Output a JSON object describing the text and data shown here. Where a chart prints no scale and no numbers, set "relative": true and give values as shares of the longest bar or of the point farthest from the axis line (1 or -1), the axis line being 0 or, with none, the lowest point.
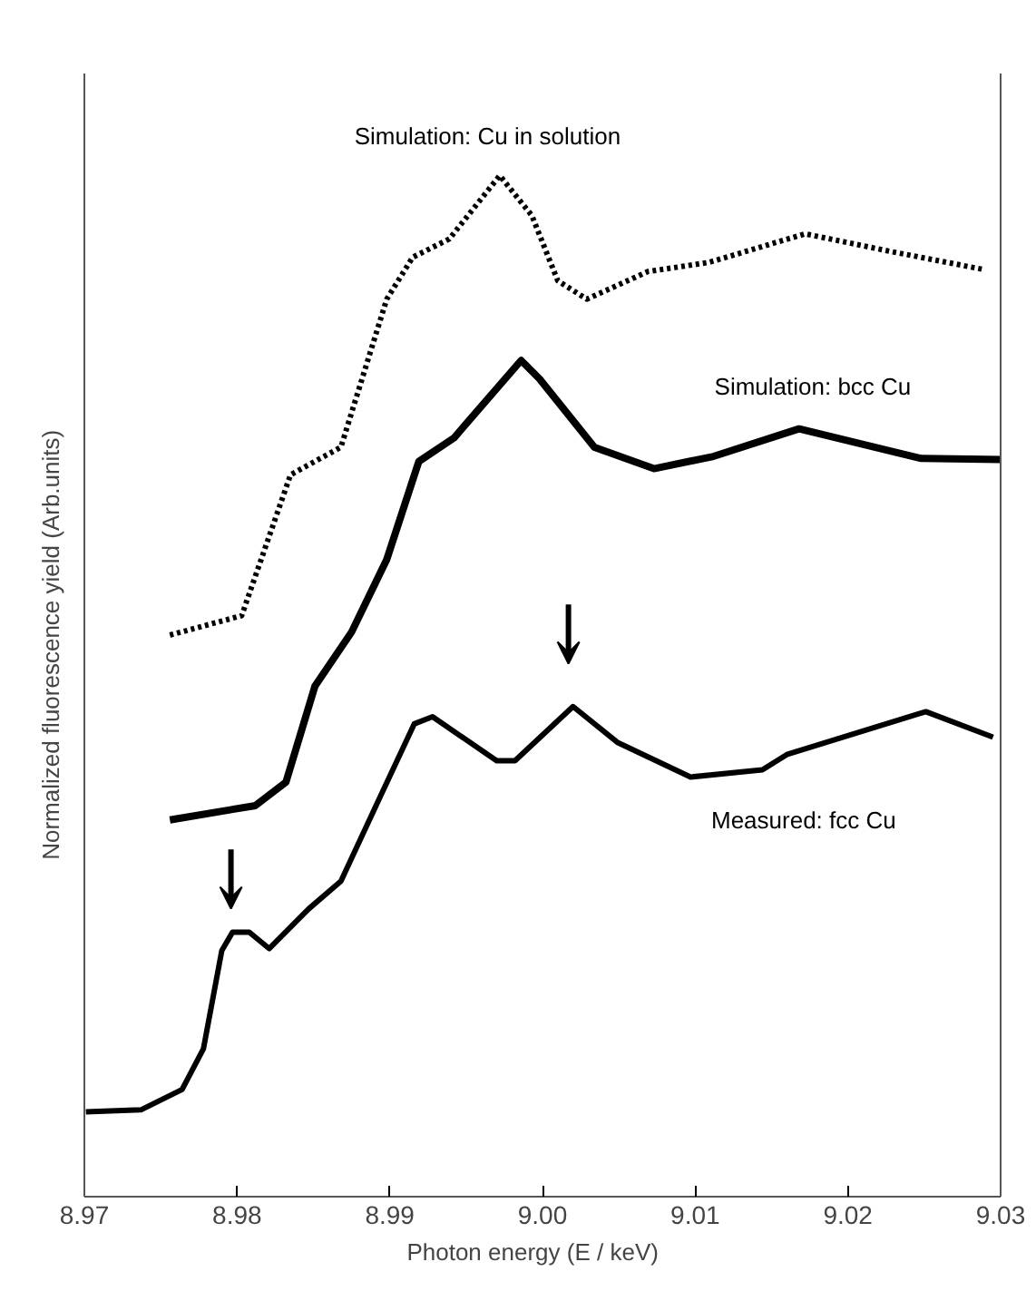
{
  "chart_data": {
    "type": "line",
    "relative": true,
    "xlabel": "Photon energy    (E / keV)",
    "ylabel": "Normalized fluorescence yield    (Arb.units)",
    "xlim": [
      8.97,
      9.03
    ],
    "xticks": [
      8.97,
      8.98,
      8.99,
      {
        "value": 9.0,
        "label": "9.00"
      },
      9.01,
      9.02,
      9.03
    ],
    "grid": false,
    "series": [
      {
        "name": "Simulation: Cu in solution",
        "color": "#000000",
        "line_style": "dotted",
        "x": [
          8.9756,
          8.9803,
          8.9835,
          8.9868,
          8.9898,
          8.9915,
          8.9939,
          8.9972,
          8.9993,
          9.001,
          9.0029,
          9.0069,
          9.0109,
          9.0172,
          9.0227,
          9.0289
        ],
        "values": [
          0.55,
          0.569,
          0.707,
          0.734,
          0.879,
          0.92,
          0.938,
          1.0,
          0.961,
          0.897,
          0.879,
          0.906,
          0.915,
          0.943,
          0.926,
          0.908
        ]
      },
      {
        "name": "Simulation: bcc Cu",
        "color": "#000000",
        "line_style": "solid",
        "x": [
          8.9756,
          8.9812,
          8.9832,
          8.9851,
          8.9875,
          8.9898,
          8.9919,
          8.9942,
          8.9986,
          8.9998,
          9.0034,
          9.0073,
          9.0112,
          9.0168,
          9.0248,
          9.03
        ],
        "values": [
          0.369,
          0.383,
          0.406,
          0.5,
          0.553,
          0.624,
          0.72,
          0.743,
          0.819,
          0.801,
          0.734,
          0.713,
          0.725,
          0.752,
          0.723,
          0.722
        ]
      },
      {
        "name": "Measured: fcc Cu",
        "color": "#000000",
        "line_style": "solid",
        "x": [
          8.9701,
          8.9737,
          8.9764,
          8.9778,
          8.979,
          8.9797,
          8.9808,
          8.9821,
          8.9847,
          8.9868,
          8.9891,
          8.9916,
          8.9928,
          8.997,
          8.9982,
          9.002,
          9.0049,
          9.0097,
          9.0144,
          9.016,
          9.0251,
          9.0295
        ],
        "values": [
          0.083,
          0.085,
          0.105,
          0.145,
          0.241,
          0.259,
          0.259,
          0.243,
          0.282,
          0.309,
          0.383,
          0.463,
          0.47,
          0.427,
          0.427,
          0.48,
          0.445,
          0.411,
          0.418,
          0.433,
          0.475,
          0.45
        ]
      }
    ]
  }
}
